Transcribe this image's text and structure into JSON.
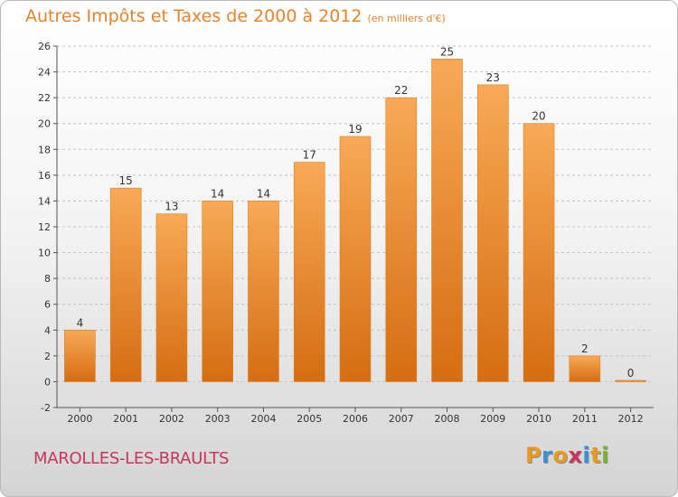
{
  "title": "Autres Impôts et Taxes de 2000 à 2012",
  "unit": "(en milliers d'€)",
  "city": "MAROLLES-LES-BRAULTS",
  "brand": {
    "letters": [
      "P",
      "r",
      "o",
      "x",
      "i",
      "t",
      "i"
    ],
    "colors": [
      "#e89a1c",
      "#3b8fd4",
      "#e89a1c",
      "#c8355f",
      "#3b8fd4",
      "#e89a1c",
      "#74b52d"
    ]
  },
  "colors": {
    "bar_light": "#f8a957",
    "bar_dark": "#d56d12",
    "title": "#e8832a",
    "city": "#c8355f"
  },
  "chart_data": {
    "type": "bar",
    "title": "Autres Impôts et Taxes de 2000 à 2012",
    "subtitle": "(en milliers d'€)",
    "categories": [
      "2000",
      "2001",
      "2002",
      "2003",
      "2004",
      "2005",
      "2006",
      "2007",
      "2008",
      "2009",
      "2010",
      "2011",
      "2012"
    ],
    "values": [
      4,
      15,
      13,
      14,
      14,
      17,
      19,
      22,
      25,
      23,
      20,
      2,
      0
    ],
    "ylim": [
      -2,
      26
    ],
    "yticks": [
      -2,
      0,
      2,
      4,
      6,
      8,
      10,
      12,
      14,
      16,
      18,
      20,
      22,
      24,
      26
    ],
    "grid": true,
    "legend": "none"
  }
}
